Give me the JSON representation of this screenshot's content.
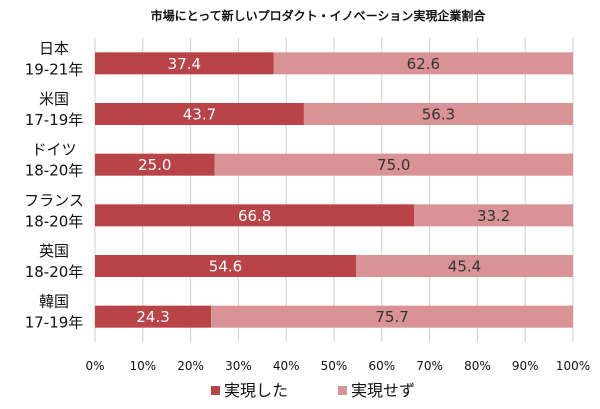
{
  "chart_data": {
    "type": "bar",
    "orientation": "horizontal",
    "stacked": true,
    "title": "市場にとって新しいプロダクト・イノベーション実現企業割合",
    "categories": [
      [
        "日本",
        "19-21年"
      ],
      [
        "米国",
        "17-19年"
      ],
      [
        "ドイツ",
        "18-20年"
      ],
      [
        "フランス",
        "18-20年"
      ],
      [
        "英国",
        "18-20年"
      ],
      [
        "韓国",
        "17-19年"
      ]
    ],
    "series": [
      {
        "name": "実現した",
        "values": [
          37.4,
          43.7,
          25.0,
          66.8,
          54.6,
          24.3
        ],
        "labels": [
          "37.4",
          "43.7",
          "25.0",
          "66.8",
          "54.6",
          "24.3"
        ],
        "color": "#b84447"
      },
      {
        "name": "実現せず",
        "values": [
          62.6,
          56.3,
          75.0,
          33.2,
          45.4,
          75.7
        ],
        "labels": [
          "62.6",
          "56.3",
          "75.0",
          "33.2",
          "45.4",
          "75.7"
        ],
        "color": "#d99396"
      }
    ],
    "xlim": [
      0,
      100
    ],
    "xticks": [
      "0%",
      "10%",
      "20%",
      "30%",
      "40%",
      "50%",
      "60%",
      "70%",
      "80%",
      "90%",
      "100%"
    ],
    "grid": "vertical",
    "legend": "bottom"
  }
}
